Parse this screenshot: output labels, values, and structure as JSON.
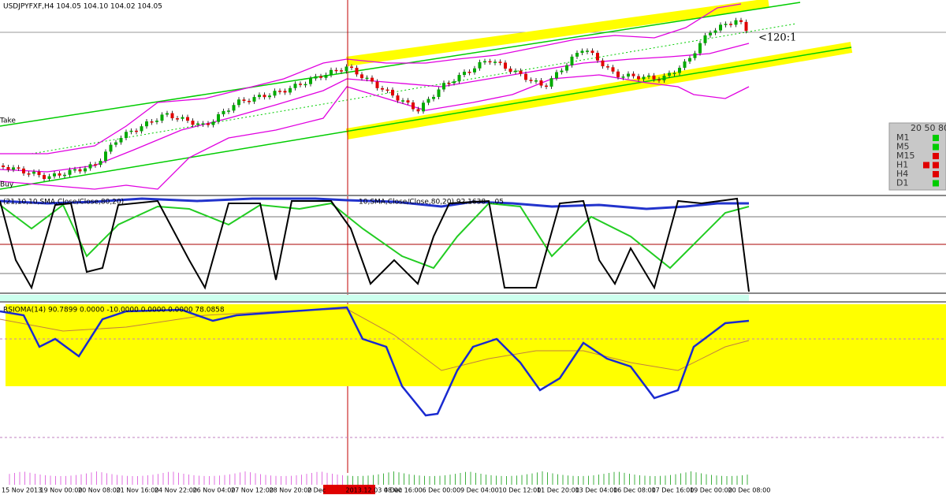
{
  "header": {
    "symbol_line": "USDJPYFXF,H4  104.05 104.10 104.02 104.05"
  },
  "annotations": {
    "take": "Take",
    "buy": "Buy",
    "ratio": "<120:1"
  },
  "stoch_panel": {
    "label_left": "(21,10,10,SMA,Close/Close,80,20)",
    "label_right": "10,SMA,Close/Close,80,20) 92.1638 ...05"
  },
  "rsioma_panel": {
    "label": "RSIOMA(14) 90.7899 0.0000 -10.0000 0.0000 0.0000 78.0858"
  },
  "timeframe_panel": {
    "header": "20 50 80",
    "rows": [
      "M1",
      "M5",
      "M15",
      "H1",
      "H4",
      "D1"
    ]
  },
  "time_axis": [
    "15 Nov 2013",
    "19 Nov 00:00",
    "20 Nov 08:00",
    "21 Nov 16:00",
    "24 Nov 22:00",
    "26 Nov 04:00",
    "27 Nov 12:00",
    "28 Nov 20:00",
    "2 Dec",
    "2013.12.03 08:00",
    "4 Dec 16:00",
    "6 Dec 00:00",
    "9 Dec 04:00",
    "10 Dec 12:00",
    "11 Dec 20:00",
    "13 Dec 04:00",
    "16 Dec 08:00",
    "17 Dec 16:00",
    "19 Dec 00:00",
    "20 Dec 08:00"
  ]
}
